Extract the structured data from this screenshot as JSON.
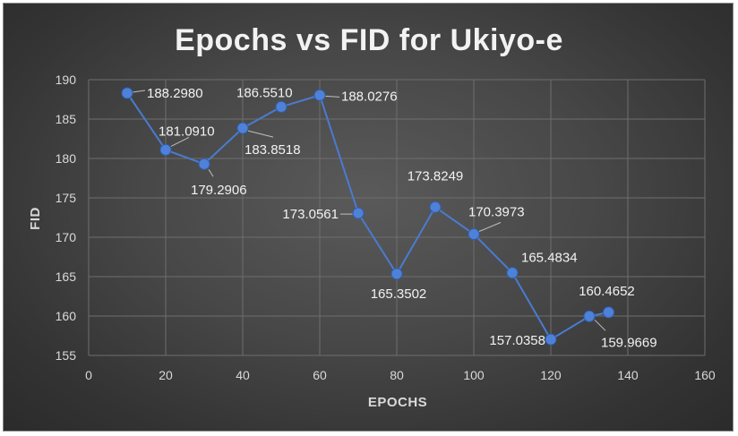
{
  "chart_data": {
    "type": "line",
    "title": "Epochs vs FID for Ukiyo-e",
    "xlabel": "EPOCHS",
    "ylabel": "FID",
    "xlim": [
      0,
      160
    ],
    "ylim": [
      155,
      190
    ],
    "x_ticks": [
      0,
      20,
      40,
      60,
      80,
      100,
      120,
      140,
      160
    ],
    "y_ticks": [
      155,
      160,
      165,
      170,
      175,
      180,
      185,
      190
    ],
    "grid": true,
    "legend": "none",
    "colors": {
      "series": "#4a7bd0",
      "marker": "#4f81d8"
    },
    "series": [
      {
        "x": [
          10,
          20,
          30,
          40,
          50,
          60,
          70,
          80,
          90,
          100,
          110,
          120,
          130,
          135
        ],
        "values": [
          188.298,
          181.091,
          179.2906,
          183.8518,
          186.551,
          188.0276,
          173.0561,
          165.3502,
          173.8249,
          170.3973,
          165.4834,
          157.0358,
          159.9669,
          160.4652
        ],
        "labels": [
          "188.2980",
          "181.0910",
          "179.2906",
          "183.8518",
          "186.5510",
          "188.0276",
          "173.0561",
          "165.3502",
          "173.8249",
          "170.3973",
          "165.4834",
          "157.0358",
          "159.9669",
          "160.4652"
        ]
      }
    ]
  }
}
